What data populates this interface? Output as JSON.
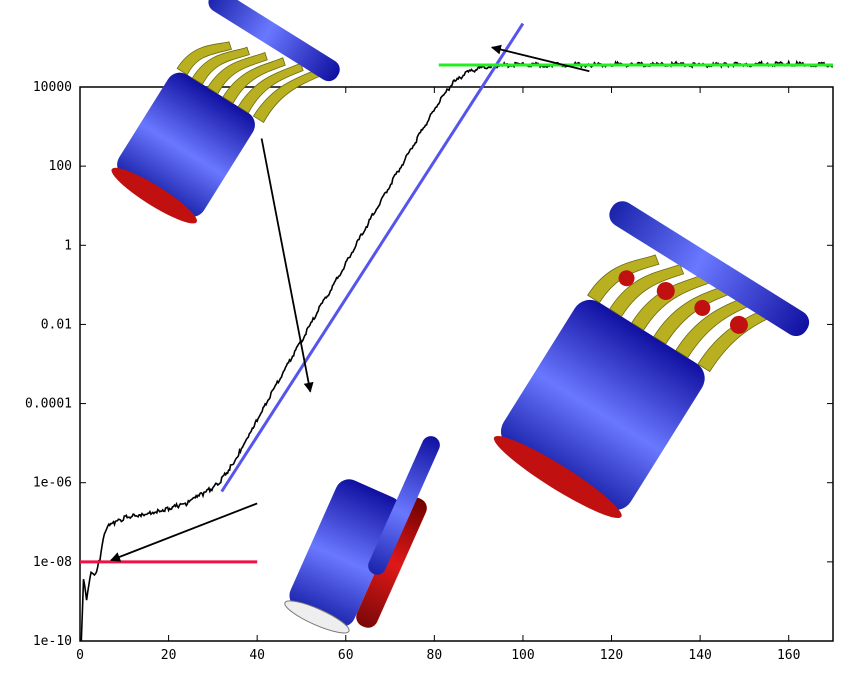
{
  "chart_data": {
    "type": "line",
    "title": "",
    "xlabel": "",
    "ylabel": "",
    "x_ticks": [
      "0",
      "20",
      "40",
      "60",
      "80",
      "100",
      "120",
      "140",
      "160"
    ],
    "y_ticks": [
      "1e-10",
      "1e-08",
      "1e-06",
      "0.0001",
      "0.01",
      "1",
      "100",
      "10000"
    ],
    "xlim": [
      0,
      170
    ],
    "ylim": [
      1e-10,
      10000
    ],
    "y_scale": "log",
    "grid": false,
    "legend": "none",
    "series": [
      {
        "color": "#000000",
        "style": "noisy-solid",
        "points": [
          [
            0.3,
            1e-10
          ],
          [
            0.8,
            4e-09
          ],
          [
            1.5,
            1.2e-09
          ],
          [
            2.5,
            6e-09
          ],
          [
            3.5,
            5e-09
          ],
          [
            4.5,
            1.2e-08
          ],
          [
            5.5,
            5e-08
          ],
          [
            6.5,
            8e-08
          ],
          [
            8,
            1e-07
          ],
          [
            10,
            1.3e-07
          ],
          [
            12,
            1.5e-07
          ],
          [
            14,
            1.6e-07
          ],
          [
            16,
            1.8e-07
          ],
          [
            18,
            2e-07
          ],
          [
            20,
            2.2e-07
          ],
          [
            22,
            2.6e-07
          ],
          [
            24,
            3e-07
          ],
          [
            26,
            4e-07
          ],
          [
            28,
            5.5e-07
          ],
          [
            30,
            7.5e-07
          ],
          [
            32,
            1.2e-06
          ],
          [
            34,
            2.5e-06
          ],
          [
            36,
            6e-06
          ],
          [
            38,
            1.6e-05
          ],
          [
            40,
            4e-05
          ],
          [
            42,
            0.0001
          ],
          [
            45,
            0.0004
          ],
          [
            48,
            0.0016
          ],
          [
            51,
            0.006
          ],
          [
            54,
            0.025
          ],
          [
            57,
            0.09
          ],
          [
            60,
            0.35
          ],
          [
            63,
            1.4
          ],
          [
            66,
            5.5
          ],
          [
            69,
            22
          ],
          [
            72,
            80
          ],
          [
            75,
            300
          ],
          [
            78,
            1100
          ],
          [
            81,
            4000
          ],
          [
            84,
            12000
          ],
          [
            87,
            22000
          ],
          [
            90,
            30000
          ],
          [
            93,
            34000
          ],
          [
            96,
            36000
          ],
          [
            100,
            37000
          ],
          [
            105,
            36000
          ],
          [
            110,
            37000
          ],
          [
            115,
            36000
          ],
          [
            120,
            37500
          ],
          [
            125,
            36500
          ],
          [
            130,
            36000
          ],
          [
            135,
            38000
          ],
          [
            140,
            35000
          ],
          [
            145,
            36000
          ],
          [
            150,
            37000
          ],
          [
            155,
            38000
          ],
          [
            160,
            38500
          ],
          [
            165,
            37000
          ],
          [
            170,
            36500
          ]
        ]
      },
      {
        "color": "#5555ee",
        "style": "solid",
        "points": [
          [
            32,
            6e-07
          ],
          [
            100,
            400000
          ]
        ]
      },
      {
        "color": "#22ee22",
        "style": "solid",
        "points": [
          [
            81,
            36000
          ],
          [
            170,
            36000
          ]
        ]
      },
      {
        "color": "#ee1144",
        "style": "solid",
        "points": [
          [
            0,
            1e-08
          ],
          [
            40,
            1e-08
          ]
        ]
      }
    ],
    "annotations": [
      {
        "kind": "arrow",
        "from": [
          41,
          500
        ],
        "to": [
          52,
          0.0002
        ]
      },
      {
        "kind": "arrow",
        "from": [
          40,
          3e-07
        ],
        "to": [
          7,
          1.1e-08
        ]
      },
      {
        "kind": "arrow",
        "from": [
          115,
          25000
        ],
        "to": [
          93,
          100000
        ]
      }
    ],
    "insets": [
      "cylinder-eddies-top-left",
      "cylinder-eddies-right",
      "cylinders-bottom-center"
    ]
  }
}
